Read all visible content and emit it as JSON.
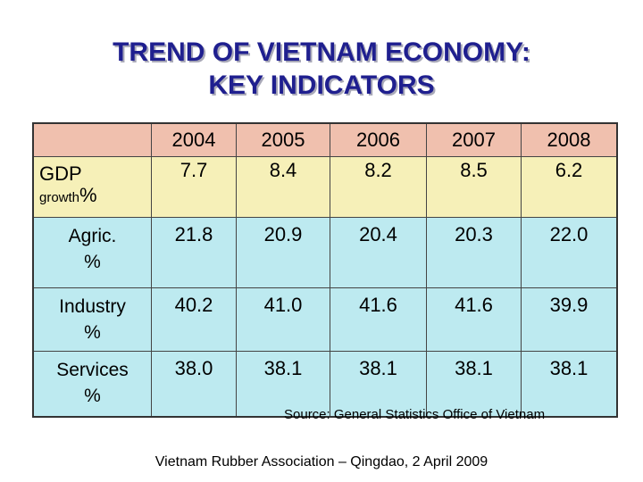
{
  "title": {
    "line1": "TREND OF VIETNAM ECONOMY:",
    "line2": "KEY INDICATORS"
  },
  "table": {
    "years": [
      "2004",
      "2005",
      "2006",
      "2007",
      "2008"
    ],
    "gdp": {
      "label": "GDP",
      "sublabel": "growth",
      "unit": "%",
      "values": [
        "7.7",
        "8.4",
        "8.2",
        "8.5",
        "6.2"
      ]
    },
    "rows": [
      {
        "label_line1": "Agric.",
        "label_line2": "%",
        "values": [
          "21.8",
          "20.9",
          "20.4",
          "20.3",
          "22.0"
        ]
      },
      {
        "label_line1": "Industry",
        "label_line2": "%",
        "values": [
          "40.2",
          "41.0",
          "41.6",
          "41.6",
          "39.9"
        ]
      },
      {
        "label_line1": "Services",
        "label_line2": "%",
        "values": [
          "38.0",
          "38.1",
          "38.1",
          "38.1",
          "38.1"
        ]
      }
    ]
  },
  "source": "Source: General Statistics Office of Vietnam",
  "footer": "Vietnam Rubber Association – Qingdao, 2 April 2009",
  "colors": {
    "title": "#1f1f8f",
    "header_row": "#f0c0ae",
    "gdp_row": "#f6f0b8",
    "sector_rows": "#bdeaf0"
  }
}
